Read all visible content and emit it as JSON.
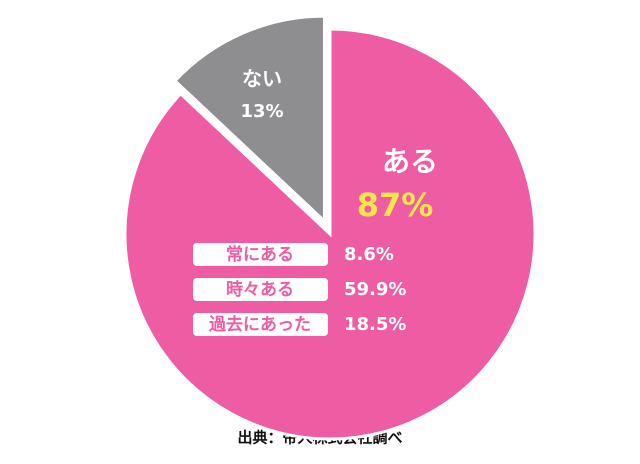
{
  "chart_data": {
    "type": "pie",
    "categories": [
      "ある",
      "ない"
    ],
    "values": [
      87,
      13
    ],
    "value_labels": [
      "87%",
      "13%"
    ],
    "colors": [
      "#ee5ca3",
      "#8e8e90"
    ],
    "breakdown": {
      "categories": [
        "常にある",
        "時々ある",
        "過去にあった"
      ],
      "values": [
        8.6,
        59.9,
        18.5
      ],
      "value_labels": [
        "8.6%",
        "59.9%",
        "18.5%"
      ]
    },
    "source": "出典：帝人株式会社調べ"
  }
}
